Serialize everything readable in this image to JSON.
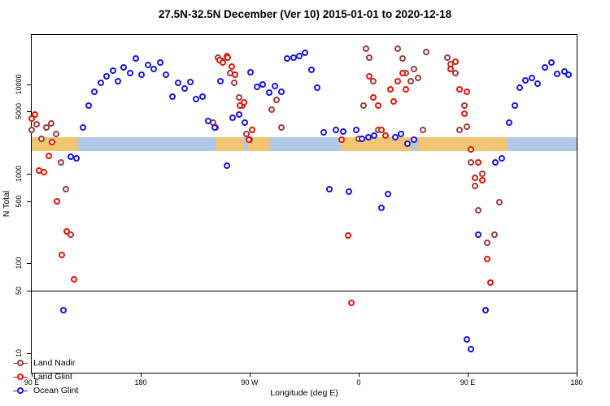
{
  "title": "27.5N-32.5N December (Ver 10)   2015-01-01 to 2020-12-18",
  "legend": {
    "items": [
      {
        "label": "Land Nadir",
        "color": "#9e3a38"
      },
      {
        "label": "Land Glint",
        "color": "#ee1100"
      },
      {
        "label": "Ocean Glint",
        "color": "#1414e8"
      }
    ]
  },
  "chart_data": {
    "type": "scatter",
    "title": "27.5N-32.5N December (Ver 10)   2015-01-01 to 2020-12-18",
    "xlabel": "Longitude (deg E)",
    "ylabel": "N Total",
    "x_axis_note": "longitude wraps eastward from 90E through 180, 90W, 0 back to 90E and 180",
    "xlim": [
      90,
      540
    ],
    "ylim": [
      6,
      36000
    ],
    "y_scale": "log",
    "grid": false,
    "legend_position": "bottom-left",
    "x_ticks": [
      {
        "pos": 90,
        "label": "90 E"
      },
      {
        "pos": 180,
        "label": "180"
      },
      {
        "pos": 270,
        "label": "90 W"
      },
      {
        "pos": 360,
        "label": "0"
      },
      {
        "pos": 450,
        "label": "90 E"
      },
      {
        "pos": 540,
        "label": "180"
      }
    ],
    "y_ticks": [
      10,
      50,
      100,
      500,
      1000,
      5000,
      10000
    ],
    "reference_line_y": 50,
    "surface_band": {
      "description": "land/ocean indicator strip along longitude",
      "y_range": [
        1800,
        2600
      ],
      "land_color": "#f2c572",
      "ocean_color": "#afc7e8",
      "segments": [
        {
          "type": "land",
          "from": 90,
          "to": 128
        },
        {
          "type": "ocean",
          "from": 128,
          "to": 242
        },
        {
          "type": "land",
          "from": 242,
          "to": 265
        },
        {
          "type": "ocean",
          "from": 265,
          "to": 268
        },
        {
          "type": "land",
          "from": 268,
          "to": 287
        },
        {
          "type": "ocean",
          "from": 287,
          "to": 345
        },
        {
          "type": "land",
          "from": 345,
          "to": 404
        },
        {
          "type": "ocean",
          "from": 404,
          "to": 409
        },
        {
          "type": "land",
          "from": 409,
          "to": 482
        },
        {
          "type": "ocean",
          "from": 482,
          "to": 540
        }
      ]
    },
    "series": [
      {
        "name": "Land Nadir",
        "color": "#9e3a38",
        "points": [
          [
            90,
            3100
          ],
          [
            94,
            3600
          ],
          [
            98,
            2500
          ],
          [
            102,
            3300
          ],
          [
            106,
            3700
          ],
          [
            110,
            2800
          ],
          [
            114,
            1350
          ],
          [
            118,
            680
          ],
          [
            122,
            210
          ],
          [
            240,
            3800
          ],
          [
            244,
            20000
          ],
          [
            247,
            18500
          ],
          [
            251,
            21000
          ],
          [
            254,
            13500
          ],
          [
            257,
            10500
          ],
          [
            261,
            7200
          ],
          [
            264,
            5800
          ],
          [
            267,
            2800
          ],
          [
            270,
            2450
          ],
          [
            288,
            5300
          ],
          [
            292,
            6800
          ],
          [
            296,
            3300
          ],
          [
            360,
            2500
          ],
          [
            364,
            5800
          ],
          [
            366,
            25000
          ],
          [
            369,
            20000
          ],
          [
            372,
            11000
          ],
          [
            376,
            3100
          ],
          [
            392,
            25000
          ],
          [
            396,
            19500
          ],
          [
            399,
            13500
          ],
          [
            403,
            11000
          ],
          [
            406,
            15000
          ],
          [
            409,
            12000
          ],
          [
            413,
            3100
          ],
          [
            416,
            23000
          ],
          [
            433,
            20000
          ],
          [
            436,
            17000
          ],
          [
            440,
            13500
          ],
          [
            443,
            3100
          ],
          [
            447,
            5800
          ],
          [
            449,
            3400
          ],
          [
            453,
            1350
          ],
          [
            456,
            735
          ],
          [
            459,
            395
          ],
          [
            462,
            1000
          ],
          [
            466,
            172
          ],
          [
            472,
            210
          ],
          [
            476,
            485
          ]
        ]
      },
      {
        "name": "Land Glint",
        "color": "#ee1100",
        "points": [
          [
            90,
            4200
          ],
          [
            93,
            4600
          ],
          [
            96,
            1100
          ],
          [
            100,
            1050
          ],
          [
            104,
            1600
          ],
          [
            107,
            2300
          ],
          [
            111,
            500
          ],
          [
            115,
            125
          ],
          [
            119,
            230
          ],
          [
            125,
            67
          ],
          [
            242,
            3300
          ],
          [
            245,
            19000
          ],
          [
            248,
            17500
          ],
          [
            252,
            20000
          ],
          [
            255,
            16000
          ],
          [
            258,
            13000
          ],
          [
            262,
            5800
          ],
          [
            265,
            6300
          ],
          [
            269,
            2400
          ],
          [
            272,
            3100
          ],
          [
            346,
            2400
          ],
          [
            351,
            205
          ],
          [
            354,
            36
          ],
          [
            369,
            12500
          ],
          [
            372,
            7200
          ],
          [
            376,
            5800
          ],
          [
            379,
            3100
          ],
          [
            382,
            2700
          ],
          [
            386,
            8800
          ],
          [
            389,
            6500
          ],
          [
            392,
            11000
          ],
          [
            396,
            13500
          ],
          [
            399,
            8900
          ],
          [
            436,
            15000
          ],
          [
            440,
            18000
          ],
          [
            443,
            8900
          ],
          [
            447,
            4700
          ],
          [
            449,
            8300
          ],
          [
            453,
            1900
          ],
          [
            456,
            900
          ],
          [
            459,
            1350
          ],
          [
            462,
            850
          ],
          [
            466,
            113
          ],
          [
            469,
            61
          ]
        ]
      },
      {
        "name": "Ocean Glint",
        "color": "#1414e8",
        "points": [
          [
            116,
            30
          ],
          [
            122,
            1550
          ],
          [
            127,
            1500
          ],
          [
            132,
            3300
          ],
          [
            137,
            5800
          ],
          [
            142,
            8300
          ],
          [
            147,
            10500
          ],
          [
            152,
            12500
          ],
          [
            157,
            14200
          ],
          [
            161,
            11000
          ],
          [
            166,
            15500
          ],
          [
            171,
            13500
          ],
          [
            176,
            19500
          ],
          [
            181,
            13000
          ],
          [
            186,
            16500
          ],
          [
            191,
            15000
          ],
          [
            196,
            17500
          ],
          [
            201,
            12800
          ],
          [
            206,
            7300
          ],
          [
            211,
            10500
          ],
          [
            216,
            9000
          ],
          [
            221,
            10800
          ],
          [
            226,
            6900
          ],
          [
            231,
            7400
          ],
          [
            236,
            3900
          ],
          [
            241,
            3300
          ],
          [
            246,
            11000
          ],
          [
            251,
            1250
          ],
          [
            256,
            4300
          ],
          [
            261,
            4600
          ],
          [
            266,
            3800
          ],
          [
            271,
            13800
          ],
          [
            276,
            9500
          ],
          [
            281,
            10000
          ],
          [
            286,
            8200
          ],
          [
            291,
            9600
          ],
          [
            296,
            8300
          ],
          [
            301,
            19500
          ],
          [
            306,
            20000
          ],
          [
            311,
            21000
          ],
          [
            316,
            22500
          ],
          [
            321,
            14500
          ],
          [
            326,
            9200
          ],
          [
            331,
            2900
          ],
          [
            336,
            680
          ],
          [
            341,
            3100
          ],
          [
            347,
            3000
          ],
          [
            352,
            640
          ],
          [
            358,
            3100
          ],
          [
            363,
            2500
          ],
          [
            368,
            2600
          ],
          [
            373,
            2700
          ],
          [
            379,
            420
          ],
          [
            384,
            600
          ],
          [
            390,
            2600
          ],
          [
            395,
            2800
          ],
          [
            400,
            2200
          ],
          [
            406,
            2400
          ],
          [
            449,
            14
          ],
          [
            453,
            11
          ],
          [
            459,
            210
          ],
          [
            465,
            30
          ],
          [
            473,
            1350
          ],
          [
            478,
            1500
          ],
          [
            484,
            3750
          ],
          [
            489,
            5800
          ],
          [
            493,
            9200
          ],
          [
            498,
            11200
          ],
          [
            503,
            12000
          ],
          [
            508,
            10200
          ],
          [
            514,
            15500
          ],
          [
            519,
            17500
          ],
          [
            524,
            13200
          ],
          [
            530,
            14000
          ],
          [
            533,
            13000
          ]
        ]
      }
    ]
  }
}
